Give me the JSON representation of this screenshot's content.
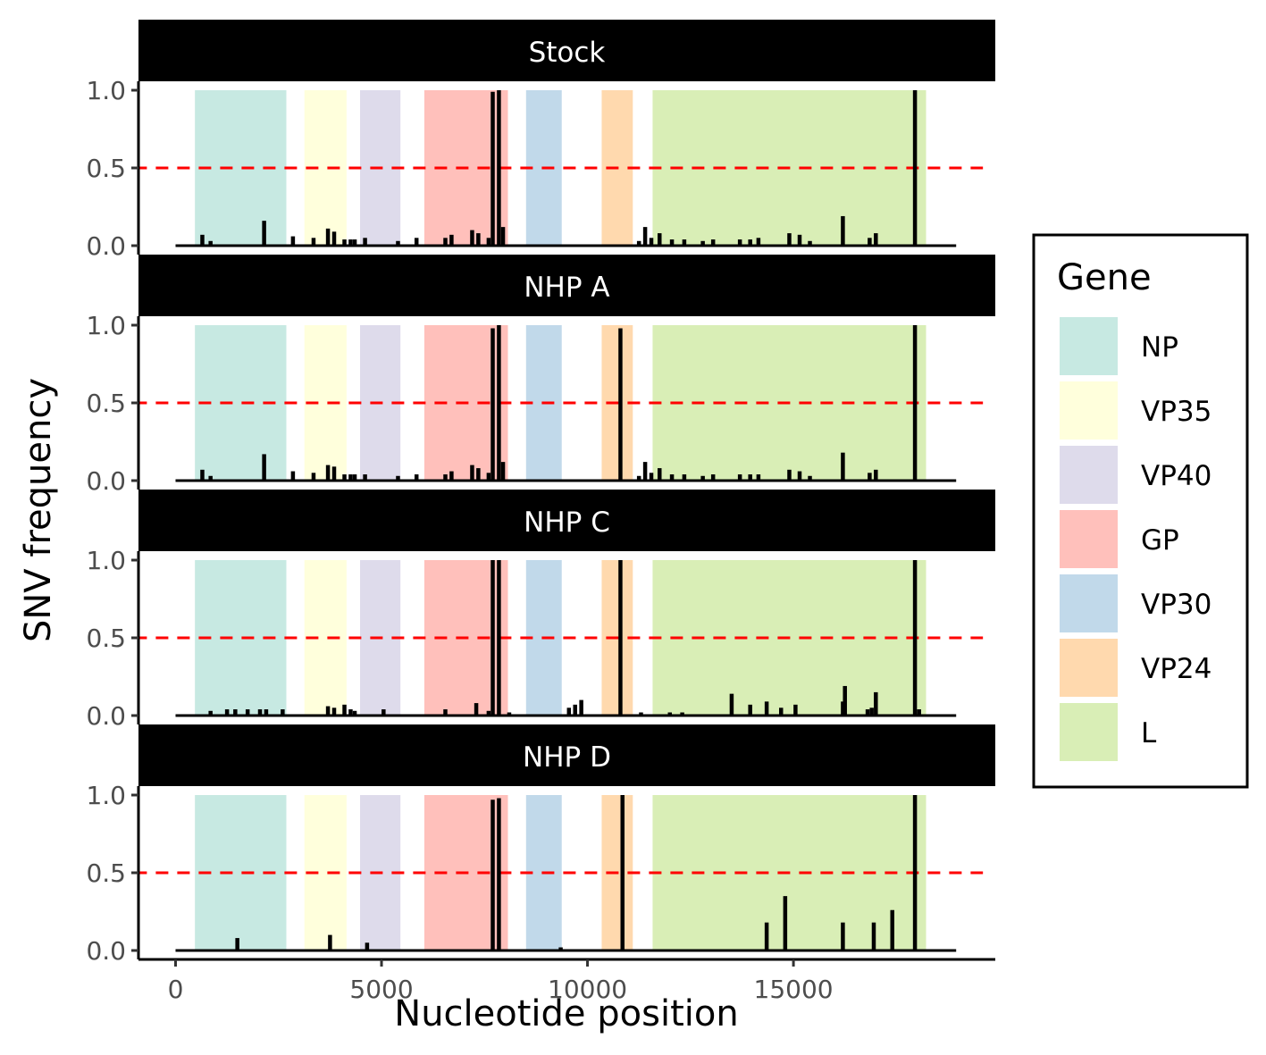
{
  "chart_data": {
    "type": "bar",
    "xlabel": "Nucleotide position",
    "ylabel": "SNV frequency",
    "xlim": [
      -900,
      19900
    ],
    "xticks": [
      0,
      5000,
      10000,
      15000
    ],
    "xtick_labels": [
      "0",
      "5000",
      "10000",
      "15000"
    ],
    "ylim": [
      0,
      1
    ],
    "yticks": [
      0.0,
      0.5,
      1.0
    ],
    "ytick_labels": [
      "0.0",
      "0.5",
      "1.0"
    ],
    "baseline_range": [
      0,
      18950
    ],
    "threshold": {
      "value": 0.5,
      "color": "#ff0000",
      "style": "dashed",
      "x_range": [
        -1000,
        19600
      ]
    },
    "grid": false,
    "legend": {
      "title": "Gene",
      "position": "right",
      "entries": [
        "NP",
        "VP35",
        "VP40",
        "GP",
        "VP30",
        "VP24",
        "L"
      ]
    },
    "genes": [
      {
        "name": "NP",
        "start": 470,
        "end": 2689,
        "color": "#c7e9e2"
      },
      {
        "name": "VP35",
        "start": 3129,
        "end": 4151,
        "color": "#ffffdc"
      },
      {
        "name": "VP40",
        "start": 4479,
        "end": 5459,
        "color": "#dedbeb"
      },
      {
        "name": "GP",
        "start": 6039,
        "end": 8068,
        "color": "#ffc0bb"
      },
      {
        "name": "VP30",
        "start": 8509,
        "end": 9375,
        "color": "#c1d9ea"
      },
      {
        "name": "VP24",
        "start": 10345,
        "end": 11100,
        "color": "#ffd9ae"
      },
      {
        "name": "L",
        "start": 11581,
        "end": 18219,
        "color": "#d9eeb6"
      }
    ],
    "panels": [
      {
        "name": "Stock",
        "x": [
          650,
          850,
          2150,
          2850,
          3350,
          3700,
          3850,
          4100,
          4250,
          4350,
          4600,
          5400,
          5850,
          6550,
          6700,
          7200,
          7350,
          7600,
          7700,
          7850,
          7950,
          11250,
          11400,
          11550,
          11750,
          12050,
          12350,
          12800,
          13050,
          13700,
          13950,
          14150,
          14900,
          15150,
          15400,
          16200,
          16850,
          17000,
          17950
        ],
        "values": [
          0.07,
          0.03,
          0.16,
          0.06,
          0.05,
          0.11,
          0.09,
          0.04,
          0.04,
          0.04,
          0.05,
          0.03,
          0.05,
          0.05,
          0.07,
          0.1,
          0.08,
          0.05,
          0.99,
          1.0,
          0.12,
          0.03,
          0.12,
          0.05,
          0.08,
          0.04,
          0.04,
          0.03,
          0.04,
          0.04,
          0.04,
          0.05,
          0.08,
          0.07,
          0.03,
          0.19,
          0.05,
          0.08,
          1.0
        ]
      },
      {
        "name": "NHP A",
        "x": [
          650,
          850,
          2150,
          2850,
          3350,
          3700,
          3850,
          4100,
          4250,
          4350,
          4600,
          5400,
          5850,
          6550,
          6700,
          7200,
          7350,
          7600,
          7700,
          7850,
          7950,
          10800,
          11250,
          11400,
          11550,
          11750,
          12050,
          12350,
          12800,
          13050,
          13700,
          13950,
          14150,
          14900,
          15150,
          15400,
          16200,
          16850,
          17000,
          17950
        ],
        "values": [
          0.07,
          0.03,
          0.17,
          0.06,
          0.05,
          0.1,
          0.09,
          0.04,
          0.04,
          0.04,
          0.04,
          0.03,
          0.04,
          0.04,
          0.06,
          0.1,
          0.08,
          0.05,
          0.98,
          1.0,
          0.12,
          0.98,
          0.03,
          0.12,
          0.05,
          0.08,
          0.04,
          0.04,
          0.03,
          0.04,
          0.04,
          0.04,
          0.04,
          0.07,
          0.06,
          0.03,
          0.18,
          0.05,
          0.07,
          1.0
        ]
      },
      {
        "name": "NHP C",
        "x": [
          850,
          1250,
          1450,
          1750,
          2050,
          2200,
          2600,
          3700,
          3850,
          4100,
          4250,
          4350,
          5050,
          6550,
          7300,
          7600,
          7700,
          7850,
          8100,
          9550,
          9700,
          9850,
          10800,
          11300,
          12000,
          12300,
          13500,
          13950,
          14350,
          14700,
          15050,
          16200,
          16250,
          16800,
          16900,
          17000,
          17950,
          18050
        ],
        "values": [
          0.03,
          0.04,
          0.04,
          0.04,
          0.04,
          0.04,
          0.04,
          0.06,
          0.05,
          0.07,
          0.04,
          0.03,
          0.04,
          0.04,
          0.08,
          0.03,
          1.0,
          1.0,
          0.02,
          0.05,
          0.07,
          0.1,
          1.0,
          0.02,
          0.02,
          0.02,
          0.14,
          0.07,
          0.09,
          0.05,
          0.07,
          0.09,
          0.19,
          0.04,
          0.05,
          0.15,
          1.0,
          0.04
        ]
      },
      {
        "name": "NHP D",
        "x": [
          1500,
          3750,
          4650,
          7700,
          7850,
          9350,
          10850,
          14350,
          14800,
          16200,
          16950,
          17400,
          17950
        ],
        "values": [
          0.08,
          0.1,
          0.05,
          0.97,
          0.98,
          0.02,
          1.0,
          0.18,
          0.35,
          0.18,
          0.18,
          0.26,
          1.0
        ]
      }
    ]
  }
}
